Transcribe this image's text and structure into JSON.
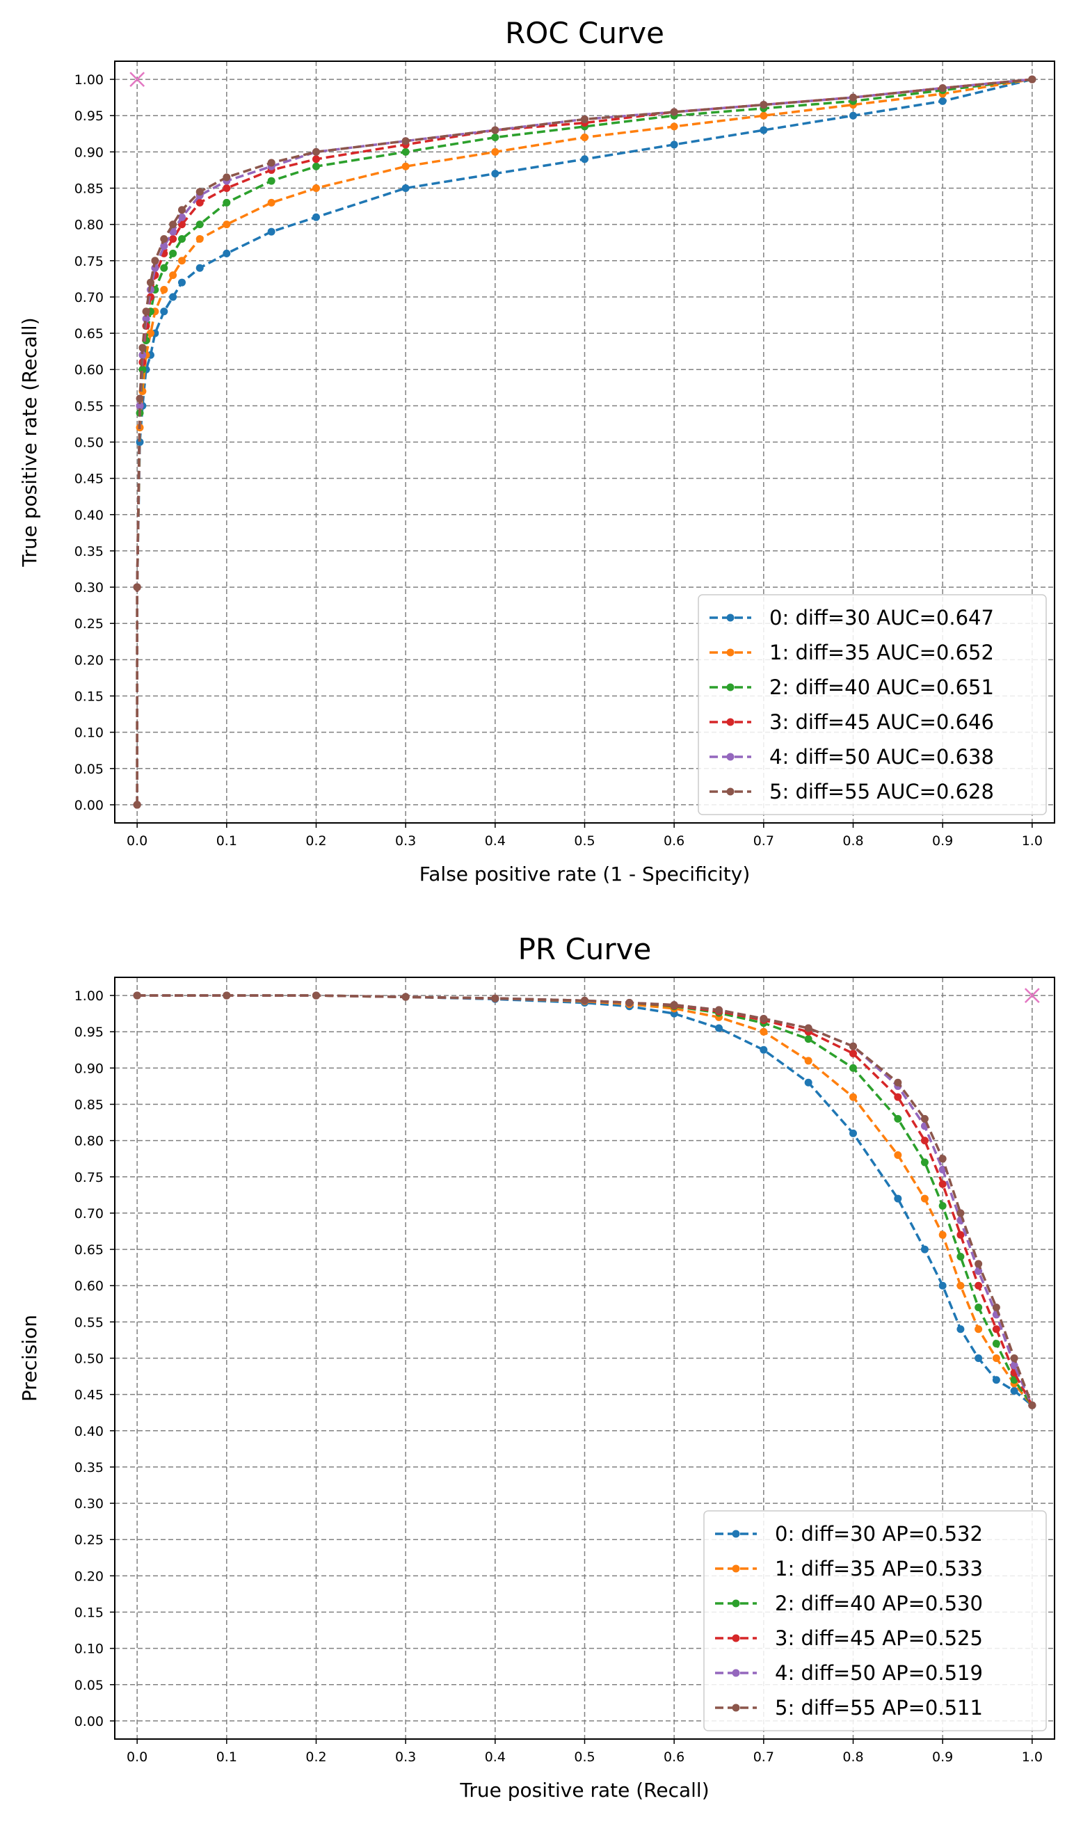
{
  "colors": {
    "series": [
      "#1f77b4",
      "#ff7f0e",
      "#2ca02c",
      "#d62728",
      "#9467bd",
      "#8c564b"
    ],
    "marker_x": "#e377c2",
    "grid": "#808080"
  },
  "chart_data": [
    {
      "type": "line",
      "title": "ROC Curve",
      "xlabel": "False positive rate (1 - Specificity)",
      "ylabel": "True positive rate (Recall)",
      "xlim": [
        -0.025,
        1.025
      ],
      "ylim": [
        -0.025,
        1.025
      ],
      "xticks": [
        "0.0",
        "0.1",
        "0.2",
        "0.3",
        "0.4",
        "0.5",
        "0.6",
        "0.7",
        "0.8",
        "0.9",
        "1.0"
      ],
      "yticks": [
        "0.00",
        "0.05",
        "0.10",
        "0.15",
        "0.20",
        "0.25",
        "0.30",
        "0.35",
        "0.40",
        "0.45",
        "0.50",
        "0.55",
        "0.60",
        "0.65",
        "0.70",
        "0.75",
        "0.80",
        "0.85",
        "0.90",
        "0.95",
        "1.00"
      ],
      "grid": true,
      "legend_position": "lower-right",
      "marker_point": {
        "x": 0.0,
        "y": 1.0
      },
      "series": [
        {
          "name": "0: diff=30 AUC=0.647",
          "x": [
            0,
            0,
            0.003,
            0.006,
            0.01,
            0.015,
            0.02,
            0.03,
            0.04,
            0.05,
            0.07,
            0.1,
            0.15,
            0.2,
            0.3,
            0.4,
            0.5,
            0.6,
            0.7,
            0.8,
            0.9,
            1.0
          ],
          "y": [
            0,
            0.3,
            0.5,
            0.55,
            0.6,
            0.62,
            0.65,
            0.68,
            0.7,
            0.72,
            0.74,
            0.76,
            0.79,
            0.81,
            0.85,
            0.87,
            0.89,
            0.91,
            0.93,
            0.95,
            0.97,
            1.0
          ]
        },
        {
          "name": "1: diff=35 AUC=0.652",
          "x": [
            0,
            0,
            0.003,
            0.006,
            0.01,
            0.015,
            0.02,
            0.03,
            0.04,
            0.05,
            0.07,
            0.1,
            0.15,
            0.2,
            0.3,
            0.4,
            0.5,
            0.6,
            0.7,
            0.8,
            0.9,
            1.0
          ],
          "y": [
            0,
            0.3,
            0.52,
            0.57,
            0.62,
            0.65,
            0.68,
            0.71,
            0.73,
            0.75,
            0.78,
            0.8,
            0.83,
            0.85,
            0.88,
            0.9,
            0.92,
            0.935,
            0.95,
            0.965,
            0.98,
            1.0
          ]
        },
        {
          "name": "2: diff=40 AUC=0.651",
          "x": [
            0,
            0,
            0.003,
            0.006,
            0.01,
            0.015,
            0.02,
            0.03,
            0.04,
            0.05,
            0.07,
            0.1,
            0.15,
            0.2,
            0.3,
            0.4,
            0.5,
            0.6,
            0.7,
            0.8,
            0.9,
            1.0
          ],
          "y": [
            0,
            0.3,
            0.54,
            0.6,
            0.64,
            0.68,
            0.71,
            0.74,
            0.76,
            0.78,
            0.8,
            0.83,
            0.86,
            0.88,
            0.9,
            0.92,
            0.935,
            0.95,
            0.96,
            0.97,
            0.985,
            1.0
          ]
        },
        {
          "name": "3: diff=45 AUC=0.646",
          "x": [
            0,
            0,
            0.003,
            0.006,
            0.01,
            0.015,
            0.02,
            0.03,
            0.04,
            0.05,
            0.07,
            0.1,
            0.15,
            0.2,
            0.3,
            0.4,
            0.5,
            0.6,
            0.7,
            0.8,
            0.9,
            1.0
          ],
          "y": [
            0,
            0.3,
            0.55,
            0.61,
            0.66,
            0.7,
            0.73,
            0.76,
            0.78,
            0.8,
            0.83,
            0.85,
            0.875,
            0.89,
            0.91,
            0.93,
            0.94,
            0.955,
            0.965,
            0.975,
            0.988,
            1.0
          ]
        },
        {
          "name": "4: diff=50 AUC=0.638",
          "x": [
            0,
            0,
            0.003,
            0.006,
            0.01,
            0.015,
            0.02,
            0.03,
            0.04,
            0.05,
            0.07,
            0.1,
            0.15,
            0.2,
            0.3,
            0.4,
            0.5,
            0.6,
            0.7,
            0.8,
            0.9,
            1.0
          ],
          "y": [
            0,
            0.3,
            0.55,
            0.62,
            0.67,
            0.71,
            0.74,
            0.77,
            0.79,
            0.81,
            0.84,
            0.86,
            0.88,
            0.9,
            0.915,
            0.93,
            0.945,
            0.955,
            0.965,
            0.975,
            0.988,
            1.0
          ]
        },
        {
          "name": "5: diff=55 AUC=0.628",
          "x": [
            0,
            0,
            0.003,
            0.006,
            0.01,
            0.015,
            0.02,
            0.03,
            0.04,
            0.05,
            0.07,
            0.1,
            0.15,
            0.2,
            0.3,
            0.4,
            0.5,
            0.6,
            0.7,
            0.8,
            0.9,
            1.0
          ],
          "y": [
            0,
            0.3,
            0.56,
            0.63,
            0.68,
            0.72,
            0.75,
            0.78,
            0.8,
            0.82,
            0.845,
            0.865,
            0.885,
            0.9,
            0.915,
            0.93,
            0.945,
            0.955,
            0.965,
            0.975,
            0.988,
            1.0
          ]
        }
      ]
    },
    {
      "type": "line",
      "title": "PR Curve",
      "xlabel": "True positive rate (Recall)",
      "ylabel": "Precision",
      "xlim": [
        -0.025,
        1.025
      ],
      "ylim": [
        -0.025,
        1.025
      ],
      "xticks": [
        "0.0",
        "0.1",
        "0.2",
        "0.3",
        "0.4",
        "0.5",
        "0.6",
        "0.7",
        "0.8",
        "0.9",
        "1.0"
      ],
      "yticks": [
        "0.00",
        "0.05",
        "0.10",
        "0.15",
        "0.20",
        "0.25",
        "0.30",
        "0.35",
        "0.40",
        "0.45",
        "0.50",
        "0.55",
        "0.60",
        "0.65",
        "0.70",
        "0.75",
        "0.80",
        "0.85",
        "0.90",
        "0.95",
        "1.00"
      ],
      "grid": true,
      "legend_position": "lower-right",
      "marker_point": {
        "x": 1.0,
        "y": 1.0
      },
      "series": [
        {
          "name": "0: diff=30 AP=0.532",
          "x": [
            0,
            0.1,
            0.2,
            0.3,
            0.4,
            0.5,
            0.55,
            0.6,
            0.65,
            0.7,
            0.75,
            0.8,
            0.85,
            0.88,
            0.9,
            0.92,
            0.94,
            0.96,
            0.98,
            1.0
          ],
          "y": [
            1.0,
            1.0,
            1.0,
            0.998,
            0.995,
            0.99,
            0.985,
            0.975,
            0.955,
            0.925,
            0.88,
            0.81,
            0.72,
            0.65,
            0.6,
            0.54,
            0.5,
            0.47,
            0.455,
            0.435
          ]
        },
        {
          "name": "1: diff=35 AP=0.533",
          "x": [
            0,
            0.1,
            0.2,
            0.3,
            0.4,
            0.5,
            0.55,
            0.6,
            0.65,
            0.7,
            0.75,
            0.8,
            0.85,
            0.88,
            0.9,
            0.92,
            0.94,
            0.96,
            0.98,
            1.0
          ],
          "y": [
            1.0,
            1.0,
            1.0,
            0.998,
            0.996,
            0.992,
            0.988,
            0.982,
            0.97,
            0.95,
            0.91,
            0.86,
            0.78,
            0.72,
            0.67,
            0.6,
            0.54,
            0.5,
            0.465,
            0.435
          ]
        },
        {
          "name": "2: diff=40 AP=0.530",
          "x": [
            0,
            0.1,
            0.2,
            0.3,
            0.4,
            0.5,
            0.55,
            0.6,
            0.65,
            0.7,
            0.75,
            0.8,
            0.85,
            0.88,
            0.9,
            0.92,
            0.94,
            0.96,
            0.98,
            1.0
          ],
          "y": [
            1.0,
            1.0,
            1.0,
            0.998,
            0.996,
            0.993,
            0.99,
            0.985,
            0.976,
            0.962,
            0.94,
            0.9,
            0.83,
            0.77,
            0.71,
            0.64,
            0.57,
            0.52,
            0.47,
            0.435
          ]
        },
        {
          "name": "3: diff=45 AP=0.525",
          "x": [
            0,
            0.1,
            0.2,
            0.3,
            0.4,
            0.5,
            0.55,
            0.6,
            0.65,
            0.7,
            0.75,
            0.8,
            0.85,
            0.88,
            0.9,
            0.92,
            0.94,
            0.96,
            0.98,
            1.0
          ],
          "y": [
            1.0,
            1.0,
            1.0,
            0.998,
            0.996,
            0.993,
            0.99,
            0.986,
            0.978,
            0.966,
            0.95,
            0.92,
            0.86,
            0.8,
            0.74,
            0.67,
            0.6,
            0.54,
            0.48,
            0.435
          ]
        },
        {
          "name": "4: diff=50 AP=0.519",
          "x": [
            0,
            0.1,
            0.2,
            0.3,
            0.4,
            0.5,
            0.55,
            0.6,
            0.65,
            0.7,
            0.75,
            0.8,
            0.85,
            0.88,
            0.9,
            0.92,
            0.94,
            0.96,
            0.98,
            1.0
          ],
          "y": [
            1.0,
            1.0,
            1.0,
            0.998,
            0.996,
            0.993,
            0.99,
            0.987,
            0.98,
            0.968,
            0.955,
            0.93,
            0.875,
            0.82,
            0.76,
            0.69,
            0.62,
            0.56,
            0.49,
            0.435
          ]
        },
        {
          "name": "5: diff=55 AP=0.511",
          "x": [
            0,
            0.1,
            0.2,
            0.3,
            0.4,
            0.5,
            0.55,
            0.6,
            0.65,
            0.7,
            0.75,
            0.8,
            0.85,
            0.88,
            0.9,
            0.92,
            0.94,
            0.96,
            0.98,
            1.0
          ],
          "y": [
            1.0,
            1.0,
            1.0,
            0.998,
            0.996,
            0.993,
            0.99,
            0.987,
            0.98,
            0.968,
            0.955,
            0.93,
            0.88,
            0.83,
            0.775,
            0.7,
            0.63,
            0.57,
            0.5,
            0.435
          ]
        }
      ]
    }
  ]
}
